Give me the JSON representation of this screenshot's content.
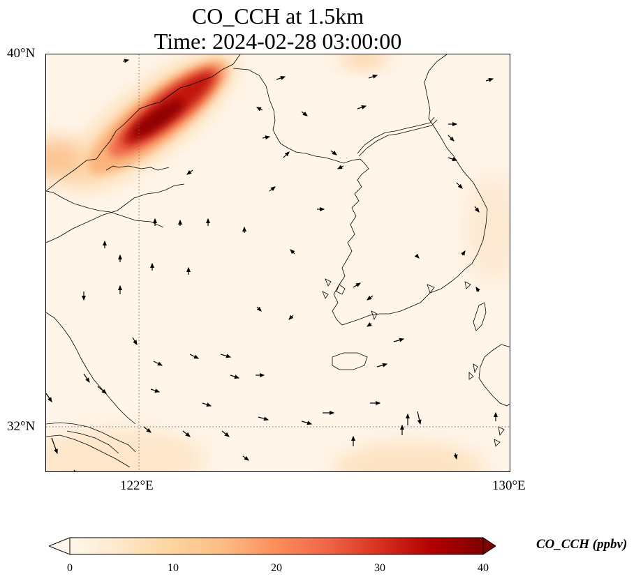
{
  "title": {
    "line1": "CO_CCH at 1.5km",
    "line2": "Time: 2024-02-28 03:00:00"
  },
  "axes": {
    "lat_labels": [
      "40°N",
      "32°N"
    ],
    "lon_labels": [
      "122°E",
      "130°E"
    ],
    "extent": {
      "lon_min": 120,
      "lon_max": 130,
      "lat_min": 31,
      "lat_max": 40
    },
    "gridlines": {
      "lons": [
        122
      ],
      "lats": [
        32
      ],
      "style": "dotted"
    }
  },
  "colorbar": {
    "label": "CO_CCH (ppbv)",
    "ticks": [
      "0",
      "10",
      "20",
      "30",
      "40"
    ],
    "min": 0,
    "max": 40,
    "colormap": "OrRd",
    "colors": [
      "#fff7ec",
      "#fee8c8",
      "#fdd49e",
      "#fdbb84",
      "#fc8d59",
      "#ef6548",
      "#d7301f",
      "#b30000",
      "#7f0000"
    ],
    "extend": "both"
  },
  "plume": {
    "description_colors": {
      "peak": "#7f0000",
      "high": "#c00000",
      "mid": "#f08040",
      "low": "#fdd49e"
    }
  }
}
